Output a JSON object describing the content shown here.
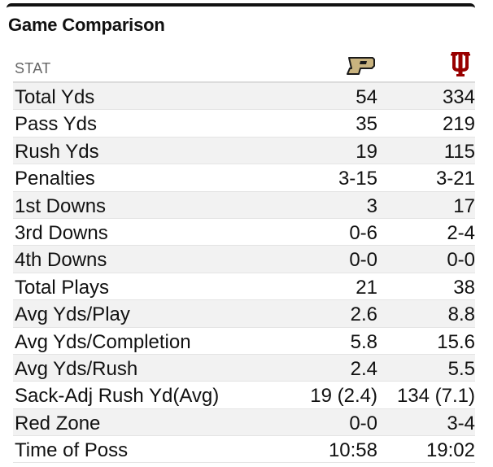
{
  "widget": {
    "title": "Game Comparison",
    "column_header": "STAT",
    "teams": [
      {
        "logo_icon": "purdue-p-logo-icon",
        "color": "#C9B37F"
      },
      {
        "logo_icon": "indiana-iu-logo-icon",
        "color": "#990000"
      }
    ]
  },
  "stats": [
    {
      "label": "Total Yds",
      "team1": "54",
      "team2": "334"
    },
    {
      "label": "Pass Yds",
      "team1": "35",
      "team2": "219"
    },
    {
      "label": "Rush Yds",
      "team1": "19",
      "team2": "115"
    },
    {
      "label": "Penalties",
      "team1": "3-15",
      "team2": "3-21"
    },
    {
      "label": "1st Downs",
      "team1": "3",
      "team2": "17"
    },
    {
      "label": "3rd Downs",
      "team1": "0-6",
      "team2": "2-4"
    },
    {
      "label": "4th Downs",
      "team1": "0-0",
      "team2": "0-0"
    },
    {
      "label": "Total Plays",
      "team1": "21",
      "team2": "38"
    },
    {
      "label": "Avg Yds/Play",
      "team1": "2.6",
      "team2": "8.8"
    },
    {
      "label": "Avg Yds/Completion",
      "team1": "5.8",
      "team2": "15.6"
    },
    {
      "label": "Avg Yds/Rush",
      "team1": "2.4",
      "team2": "5.5"
    },
    {
      "label": "Sack-Adj Rush Yd(Avg)",
      "team1": "19 (2.4)",
      "team2": "134 (7.1)"
    },
    {
      "label": "Red Zone",
      "team1": "0-0",
      "team2": "3-4"
    },
    {
      "label": "Time of Poss",
      "team1": "10:58",
      "team2": "19:02"
    }
  ]
}
